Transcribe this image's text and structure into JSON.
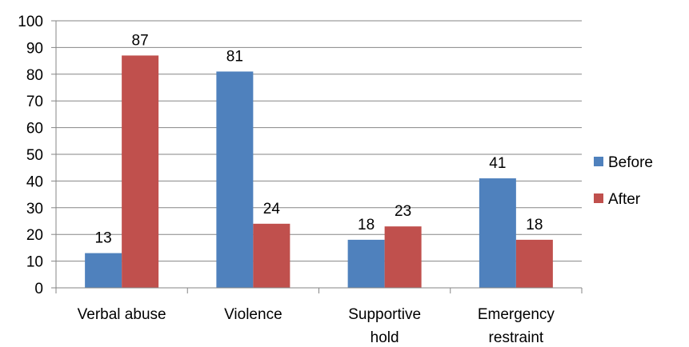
{
  "chart_data": {
    "type": "bar",
    "categories": [
      "Verbal abuse",
      "Violence",
      "Supportive hold",
      "Emergency restraint"
    ],
    "category_lines": [
      [
        "Verbal abuse"
      ],
      [
        "Violence"
      ],
      [
        "Supportive",
        "hold"
      ],
      [
        "Emergency",
        "restraint"
      ]
    ],
    "series": [
      {
        "name": "Before",
        "values": [
          13,
          81,
          18,
          41
        ],
        "color": "#4F81BD"
      },
      {
        "name": "After",
        "values": [
          87,
          24,
          23,
          18
        ],
        "color": "#C0504D"
      }
    ],
    "ylim": [
      0,
      100
    ],
    "yticks": [
      "0",
      "10",
      "20",
      "30",
      "40",
      "50",
      "60",
      "70",
      "80",
      "90",
      "100"
    ],
    "grid": true,
    "legend_position": "right",
    "data_labels": true
  }
}
